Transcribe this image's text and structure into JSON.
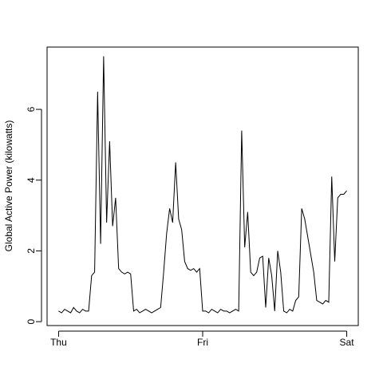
{
  "chart_data": {
    "type": "line",
    "ylabel": "Global Active Power (kilowatts)",
    "x": [
      0,
      0.5,
      1,
      1.5,
      2,
      2.5,
      3,
      3.5,
      4,
      4.5,
      5,
      5.5,
      6,
      6.5,
      7,
      7.5,
      8,
      8.5,
      9,
      9.5,
      10,
      10.5,
      11,
      11.5,
      12,
      12.5,
      13,
      13.5,
      14,
      14.5,
      15,
      15.5,
      16,
      16.5,
      17,
      17.5,
      18,
      18.5,
      19,
      19.5,
      20,
      20.5,
      21,
      21.5,
      22,
      22.5,
      23,
      23.5,
      24,
      24.5,
      25,
      25.5,
      26,
      26.5,
      27,
      27.5,
      28,
      28.5,
      29,
      29.5,
      30,
      30.5,
      31,
      31.5,
      32,
      32.5,
      33,
      33.5,
      34,
      34.5,
      35,
      35.5,
      36,
      36.5,
      37,
      37.5,
      38,
      38.5,
      39,
      39.5,
      40,
      40.5,
      41,
      41.5,
      42,
      42.5,
      43,
      43.5,
      44,
      44.5,
      45,
      45.5,
      46,
      46.5,
      47,
      47.5,
      48
    ],
    "series": [
      {
        "name": "Global_active_power",
        "color": "#000000",
        "values": [
          0.3,
          0.25,
          0.35,
          0.3,
          0.25,
          0.4,
          0.3,
          0.25,
          0.35,
          0.3,
          0.3,
          1.3,
          1.4,
          6.5,
          2.2,
          7.5,
          2.8,
          5.1,
          2.7,
          3.5,
          1.5,
          1.4,
          1.35,
          1.4,
          1.35,
          0.3,
          0.35,
          0.25,
          0.3,
          0.35,
          0.3,
          0.25,
          0.3,
          0.35,
          0.4,
          1.4,
          2.5,
          3.2,
          2.8,
          4.5,
          2.9,
          2.6,
          1.7,
          1.5,
          1.45,
          1.5,
          1.4,
          1.5,
          0.3,
          0.3,
          0.25,
          0.35,
          0.3,
          0.25,
          0.35,
          0.3,
          0.3,
          0.25,
          0.3,
          0.35,
          0.3,
          5.4,
          2.1,
          3.1,
          1.4,
          1.3,
          1.4,
          1.8,
          1.85,
          0.4,
          1.8,
          1.3,
          0.3,
          2.0,
          1.4,
          0.3,
          0.25,
          0.35,
          0.3,
          0.6,
          0.7,
          3.2,
          2.9,
          2.4,
          1.9,
          1.4,
          0.6,
          0.55,
          0.5,
          0.6,
          0.55,
          4.1,
          1.7,
          3.5,
          3.6,
          3.6,
          3.7
        ]
      }
    ],
    "xlim": [
      -1.92,
      49.92
    ],
    "xticks": [
      {
        "value": 0,
        "label": "Thu"
      },
      {
        "value": 24,
        "label": "Fri"
      },
      {
        "value": 48,
        "label": "Sat"
      }
    ],
    "ylim": [
      -0.11,
      7.76
    ],
    "yticks": [
      0,
      2,
      4,
      6
    ],
    "grid": false
  }
}
